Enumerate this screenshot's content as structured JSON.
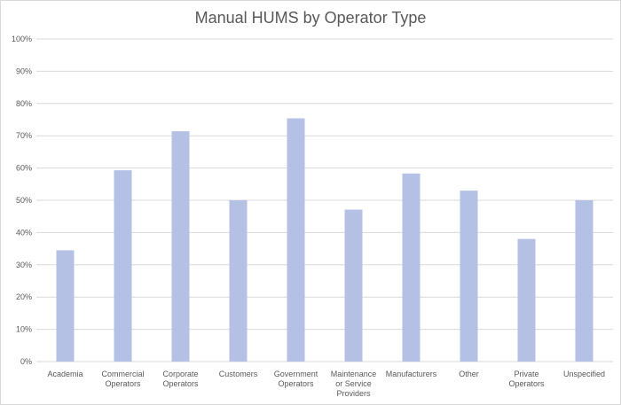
{
  "chart_data": {
    "type": "bar",
    "title": "Manual HUMS by Operator Type",
    "xlabel": "",
    "ylabel": "",
    "categories": [
      "Academia",
      "Commercial Operators",
      "Corporate Operators",
      "Customers",
      "Government Operators",
      "Maintenance or Service Providers",
      "Manufacturers",
      "Other",
      "Private Operators",
      "Unspecified"
    ],
    "category_lines": [
      [
        "Academia"
      ],
      [
        "Commercial",
        "Operators"
      ],
      [
        "Corporate",
        "Operators"
      ],
      [
        "Customers"
      ],
      [
        "Government",
        "Operators"
      ],
      [
        "Maintenance",
        "or Service",
        "Providers"
      ],
      [
        "Manufacturers"
      ],
      [
        "Other"
      ],
      [
        "Private",
        "Operators"
      ],
      [
        "Unspecified"
      ]
    ],
    "values": [
      34.5,
      59.3,
      71.4,
      50.0,
      75.4,
      47.1,
      58.3,
      53.0,
      38.0,
      50.0
    ],
    "ylim": [
      0,
      100
    ],
    "yticks": [
      "0%",
      "10%",
      "20%",
      "30%",
      "40%",
      "50%",
      "60%",
      "70%",
      "80%",
      "90%",
      "100%"
    ],
    "grid": true,
    "legend": "none",
    "bar_color": "#b4c1e4",
    "grid_color": "#d9d9d9"
  }
}
